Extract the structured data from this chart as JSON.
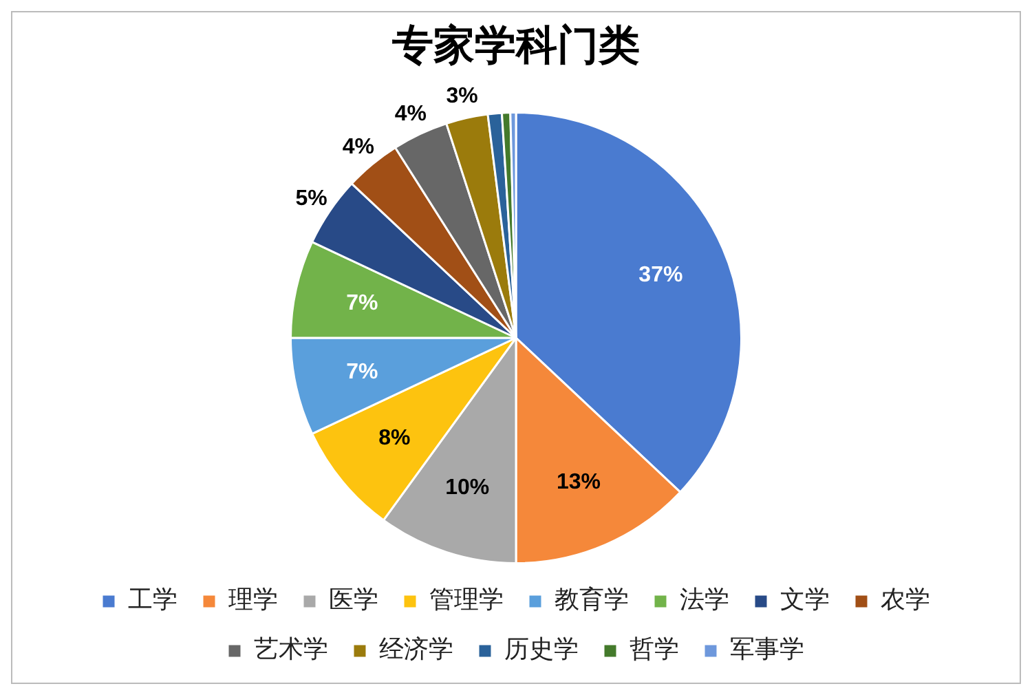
{
  "chart_data": {
    "type": "pie",
    "title": "专家学科门类",
    "categories": [
      "工学",
      "理学",
      "医学",
      "管理学",
      "教育学",
      "法学",
      "文学",
      "农学",
      "艺术学",
      "经济学",
      "历史学",
      "哲学",
      "军事学"
    ],
    "values": [
      37,
      13,
      10,
      8,
      7,
      7,
      5,
      4,
      4,
      3,
      1,
      0.6,
      0.4
    ],
    "value_labels": [
      "37%",
      "13%",
      "10%",
      "8%",
      "7%",
      "7%",
      "5%",
      "4%",
      "4%",
      "3%",
      null,
      null,
      null
    ],
    "colors": [
      "#4a7bd0",
      "#f5883a",
      "#a9a9a9",
      "#fdc30f",
      "#5a9fdc",
      "#72b34a",
      "#284a87",
      "#a14f16",
      "#676767",
      "#9b7b0c",
      "#2a629a",
      "#447a2b",
      "#6e98dc"
    ],
    "legend": "bottom"
  }
}
